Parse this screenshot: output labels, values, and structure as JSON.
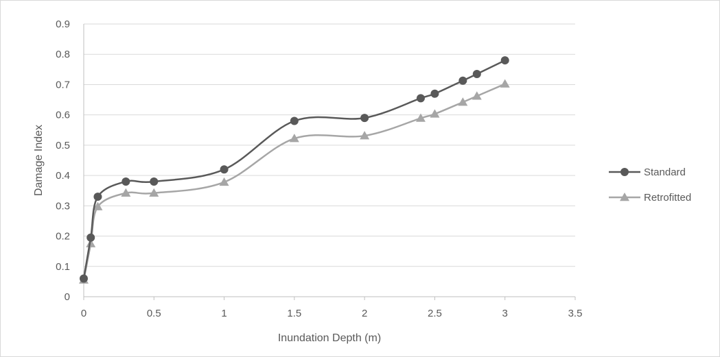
{
  "chart_data": {
    "type": "line",
    "title": "",
    "xlabel": "Inundation Depth (m)",
    "ylabel": "Damage Index",
    "xlim": [
      0,
      3.5
    ],
    "ylim": [
      0,
      0.9
    ],
    "x_ticks": [
      "0",
      "0.5",
      "1",
      "1.5",
      "2",
      "2.5",
      "3",
      "3.5"
    ],
    "y_ticks": [
      "0",
      "0.1",
      "0.2",
      "0.3",
      "0.4",
      "0.5",
      "0.6",
      "0.7",
      "0.8",
      "0.9"
    ],
    "grid": "horizontal",
    "legend_position": "right",
    "smooth": true,
    "series": [
      {
        "name": "Standard",
        "marker": "circle",
        "color": "#595959",
        "x": [
          0,
          0.05,
          0.1,
          0.3,
          0.5,
          1,
          1.5,
          2,
          2.4,
          2.5,
          2.7,
          2.8,
          3
        ],
        "y": [
          0.06,
          0.195,
          0.33,
          0.38,
          0.38,
          0.42,
          0.58,
          0.59,
          0.655,
          0.67,
          0.713,
          0.735,
          0.78
        ]
      },
      {
        "name": "Retrofitted",
        "marker": "triangle",
        "color": "#a6a6a6",
        "x": [
          0,
          0.05,
          0.1,
          0.3,
          0.5,
          1,
          1.5,
          2,
          2.4,
          2.5,
          2.7,
          2.8,
          3
        ],
        "y": [
          0.055,
          0.175,
          0.297,
          0.342,
          0.342,
          0.378,
          0.522,
          0.531,
          0.589,
          0.603,
          0.642,
          0.662,
          0.702
        ]
      }
    ]
  }
}
